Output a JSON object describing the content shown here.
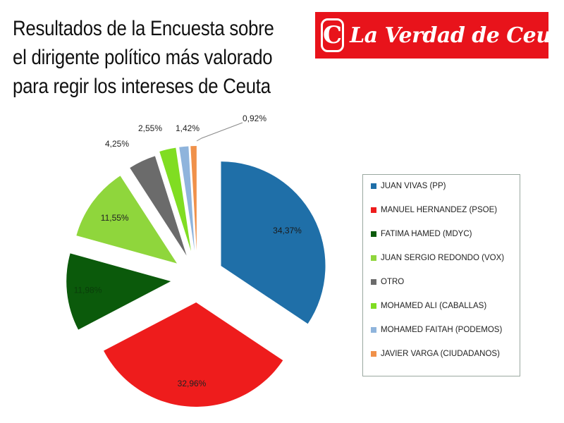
{
  "header": {
    "title_lines": [
      "Resultados de la Encuesta sobre",
      "el dirigente político más valorado",
      "para regir los intereses de Ceuta"
    ]
  },
  "logo": {
    "mark": "C",
    "text": "La Verdad de Ceuta",
    "color": "#e8131b"
  },
  "chart_data": {
    "type": "pie",
    "exploded": true,
    "legend_position": "right",
    "series": [
      {
        "name": "JUAN VIVAS (PP)",
        "value": 34.37,
        "label": "34,37%",
        "color": "#1f6fa8"
      },
      {
        "name": "MANUEL HERNANDEZ (PSOE)",
        "value": 32.96,
        "label": "32,96%",
        "color": "#ee1c1c"
      },
      {
        "name": "FATIMA HAMED (MDYC)",
        "value": 11.98,
        "label": "11,98%",
        "color": "#0b5a0b"
      },
      {
        "name": "JUAN SERGIO REDONDO (VOX)",
        "value": 11.55,
        "label": "11,55%",
        "color": "#8fd63c"
      },
      {
        "name": "OTRO",
        "value": 4.25,
        "label": "4,25%",
        "color": "#6b6b6b"
      },
      {
        "name": "MOHAMED ALI (CABALLAS)",
        "value": 2.55,
        "label": "2,55%",
        "color": "#80dd22"
      },
      {
        "name": "MOHAMED FAITAH (PODEMOS)",
        "value": 1.42,
        "label": "1,42%",
        "color": "#8fb4dc"
      },
      {
        "name": "JAVIER VARGA (CIUDADANOS)",
        "value": 0.92,
        "label": "0,92%",
        "color": "#f0914a"
      }
    ]
  }
}
